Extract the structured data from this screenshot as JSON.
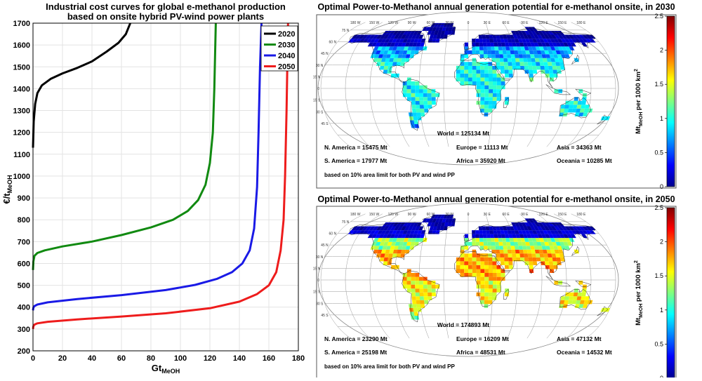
{
  "colors": {
    "c2020": "#000000",
    "c2030": "#118a11",
    "c2040": "#1a1ae6",
    "c2050": "#ee1c1c",
    "ocean": "#ffffff",
    "grid": "#9a9a9a"
  },
  "chart_data": [
    {
      "type": "line",
      "title_line1": "Industrial cost curves for global e-methanol production",
      "title_line2": "based on onsite hybrid PV-wind power plants",
      "xlabel": "Gt",
      "xlabel_sub": "MeOH",
      "ylabel": "€/t",
      "ylabel_sub": "MeOH",
      "xlim": [
        0,
        180
      ],
      "ylim": [
        200,
        1700
      ],
      "xticks": [
        "0",
        "20",
        "40",
        "60",
        "80",
        "100",
        "120",
        "140",
        "160",
        "180"
      ],
      "yticks": [
        "200",
        "300",
        "400",
        "500",
        "600",
        "700",
        "800",
        "900",
        "1000",
        "1100",
        "1200",
        "1300",
        "1400",
        "1500",
        "1600",
        "1700"
      ],
      "grid": true,
      "legend_position": "top-right",
      "series": [
        {
          "name": "2020",
          "color_key": "c2020",
          "points": [
            [
              0,
              1130
            ],
            [
              0.5,
              1250
            ],
            [
              1.5,
              1330
            ],
            [
              3,
              1380
            ],
            [
              6,
              1415
            ],
            [
              12,
              1445
            ],
            [
              20,
              1470
            ],
            [
              30,
              1495
            ],
            [
              40,
              1525
            ],
            [
              50,
              1570
            ],
            [
              58,
              1610
            ],
            [
              63,
              1650
            ],
            [
              66,
              1700
            ]
          ]
        },
        {
          "name": "2030",
          "color_key": "c2030",
          "points": [
            [
              0,
              570
            ],
            [
              0.3,
              610
            ],
            [
              1,
              635
            ],
            [
              3,
              648
            ],
            [
              8,
              660
            ],
            [
              20,
              678
            ],
            [
              40,
              700
            ],
            [
              60,
              730
            ],
            [
              80,
              765
            ],
            [
              95,
              800
            ],
            [
              105,
              840
            ],
            [
              112,
              890
            ],
            [
              117,
              960
            ],
            [
              120,
              1060
            ],
            [
              122,
              1200
            ],
            [
              123,
              1400
            ],
            [
              124,
              1700
            ]
          ]
        },
        {
          "name": "2040",
          "color_key": "c2040",
          "points": [
            [
              0,
              385
            ],
            [
              0.3,
              398
            ],
            [
              1,
              405
            ],
            [
              3,
              412
            ],
            [
              10,
              422
            ],
            [
              30,
              437
            ],
            [
              60,
              455
            ],
            [
              90,
              478
            ],
            [
              110,
              502
            ],
            [
              125,
              530
            ],
            [
              135,
              560
            ],
            [
              142,
              600
            ],
            [
              147,
              660
            ],
            [
              150,
              760
            ],
            [
              152,
              950
            ],
            [
              153,
              1200
            ],
            [
              154,
              1500
            ],
            [
              155,
              1700
            ]
          ]
        },
        {
          "name": "2050",
          "color_key": "c2050",
          "points": [
            [
              0,
              300
            ],
            [
              0.3,
              313
            ],
            [
              1,
              320
            ],
            [
              3,
              326
            ],
            [
              10,
              333
            ],
            [
              30,
              344
            ],
            [
              60,
              357
            ],
            [
              90,
              372
            ],
            [
              120,
              395
            ],
            [
              140,
              425
            ],
            [
              152,
              460
            ],
            [
              160,
              500
            ],
            [
              165,
              560
            ],
            [
              168,
              660
            ],
            [
              170,
              800
            ],
            [
              171,
              1000
            ],
            [
              172,
              1300
            ],
            [
              173,
              1700
            ]
          ]
        }
      ]
    },
    {
      "type": "heatmap",
      "title": "Optimal Power-to-Methanol annual generation potential for e-methanol onsite, in 2030",
      "colorbar_label": "Mt",
      "colorbar_label_sub": "MeOH",
      "colorbar_label_rest": " per 1000 km",
      "colorbar_label_sup": "2",
      "colorbar_ticks": [
        "0",
        "0.5",
        "1",
        "1.5",
        "2",
        "2.5"
      ],
      "colorbar_range": [
        0,
        2.5
      ],
      "world": "World = 125134 Mt",
      "regions": {
        "n_america": "N. America = 15475 Mt",
        "europe": "Europe = 11113 Mt",
        "asia": "Asia = 34363 Mt",
        "s_america": "S. America = 17977 Mt",
        "africa": "Africa = 35920 Mt",
        "oceania": "Oceania = 10285 Mt"
      },
      "note": "based on 10% area limit for both PV and wind PP",
      "level_hint": {
        "north": 0.15,
        "mid": 0.95,
        "south": 0.95
      }
    },
    {
      "type": "heatmap",
      "title": "Optimal Power-to-Methanol annual generation potential for e-methanol onsite, in 2050",
      "colorbar_label": "Mt",
      "colorbar_label_sub": "MeOH",
      "colorbar_label_rest": " per 1000 km",
      "colorbar_label_sup": "2",
      "colorbar_ticks": [
        "0",
        "0.5",
        "1",
        "1.5",
        "2",
        "2.5"
      ],
      "colorbar_range": [
        0,
        2.5
      ],
      "world": "World = 174893 Mt",
      "regions": {
        "n_america": "N. America = 23290 Mt",
        "europe": "Europe = 16209 Mt",
        "asia": "Asia = 47132 Mt",
        "s_america": "S. America = 25198 Mt",
        "africa": "Africa = 48531 Mt",
        "oceania": "Oceania = 14532 Mt"
      },
      "note": "based on 10% area limit for both PV and wind PP",
      "level_hint": {
        "north": 0.2,
        "mid": 1.75,
        "south": 1.55
      }
    }
  ],
  "map_labels": {
    "longitudes": [
      "180 W",
      "150 W",
      "120 W",
      "90 W",
      "60 W",
      "30 W",
      "0",
      "30 E",
      "60 E",
      "90 E",
      "120 E",
      "150 E",
      "180 E"
    ],
    "latitudes": [
      "75 N",
      "60 N",
      "45 N",
      "30 N",
      "15 N",
      "0",
      "15 S",
      "30 S",
      "45 S"
    ]
  }
}
